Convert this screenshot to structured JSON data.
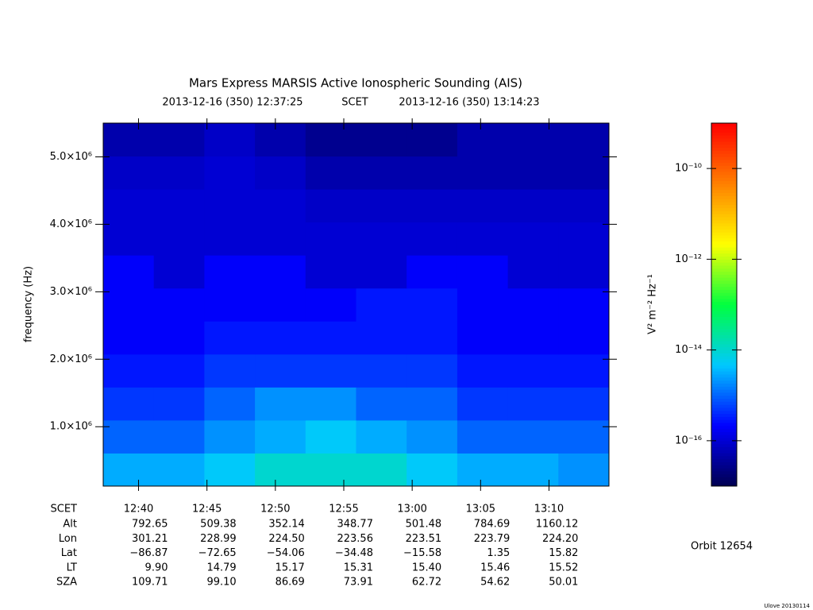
{
  "chart_data": {
    "type": "spectrogram",
    "title": "Mars Express MARSIS Active Ionospheric Sounding (AIS)",
    "start_time": "2013-12-16 (350) 12:37:25",
    "x_label": "SCET",
    "end_time": "2013-12-16 (350) 13:14:23",
    "y_label": "frequency (Hz)",
    "ylim": [
      120000,
      5500000
    ],
    "yticks": [
      {
        "value": 1000000,
        "label": "1.0×10⁶"
      },
      {
        "value": 2000000,
        "label": "2.0×10⁶"
      },
      {
        "value": 3000000,
        "label": "3.0×10⁶"
      },
      {
        "value": 4000000,
        "label": "4.0×10⁶"
      },
      {
        "value": 5000000,
        "label": "5.0×10⁶"
      }
    ],
    "xticks": [
      "12:40",
      "12:45",
      "12:50",
      "12:55",
      "13:00",
      "13:05",
      "13:10"
    ],
    "z": [
      [
        3e-15,
        3e-15,
        5e-15,
        1e-14,
        1e-14,
        1e-14,
        5e-15,
        3e-15,
        3e-15,
        2e-15
      ],
      [
        1e-15,
        1e-15,
        2e-15,
        3e-15,
        5e-15,
        3e-15,
        2e-15,
        1e-15,
        1e-15,
        1e-15
      ],
      [
        5e-16,
        5e-16,
        1e-15,
        2e-15,
        2e-15,
        1e-15,
        1e-15,
        5e-16,
        5e-16,
        5e-16
      ],
      [
        3e-16,
        3e-16,
        5e-16,
        5e-16,
        5e-16,
        5e-16,
        5e-16,
        3e-16,
        3e-16,
        3e-16
      ],
      [
        2e-16,
        2e-16,
        3e-16,
        3e-16,
        3e-16,
        3e-16,
        3e-16,
        2e-16,
        2e-16,
        2e-16
      ],
      [
        2e-16,
        2e-16,
        2e-16,
        2e-16,
        2e-16,
        3e-16,
        3e-16,
        2e-16,
        2e-16,
        2e-16
      ],
      [
        2e-16,
        1e-16,
        2e-16,
        2e-16,
        1e-16,
        1e-16,
        2e-16,
        2e-16,
        1e-16,
        1e-16
      ],
      [
        1e-16,
        1e-16,
        1e-16,
        1e-16,
        1e-16,
        1e-16,
        1e-16,
        1e-16,
        1e-16,
        1e-16
      ],
      [
        1e-16,
        1e-16,
        1e-16,
        1e-16,
        8e-17,
        8e-17,
        8e-17,
        8e-17,
        8e-17,
        8e-17
      ],
      [
        8e-17,
        8e-17,
        1e-16,
        8e-17,
        5e-17,
        5e-17,
        5e-17,
        5e-17,
        5e-17,
        5e-17
      ],
      [
        5e-17,
        5e-17,
        8e-17,
        5e-17,
        3e-17,
        3e-17,
        3e-17,
        5e-17,
        5e-17,
        5e-17
      ]
    ],
    "colormap": [
      "#000050",
      "#0000ff",
      "#00c8ff",
      "#00ff40",
      "#ffff00",
      "#ff8000",
      "#ff0000"
    ],
    "colorbar": {
      "label": "V² m⁻² Hz⁻¹",
      "log": true,
      "lim": [
        1e-17,
        1e-09
      ],
      "ticks": [
        {
          "value": 1e-10,
          "label": "10⁻¹⁰"
        },
        {
          "value": 1e-12,
          "label": "10⁻¹²"
        },
        {
          "value": 1e-14,
          "label": "10⁻¹⁴"
        },
        {
          "value": 1e-16,
          "label": "10⁻¹⁶"
        }
      ]
    }
  },
  "ephemeris": [
    {
      "name": "Alt",
      "values": [
        "792.65",
        "509.38",
        "352.14",
        "348.77",
        "501.48",
        "784.69",
        "1160.12"
      ]
    },
    {
      "name": "Lon",
      "values": [
        "301.21",
        "228.99",
        "224.50",
        "223.56",
        "223.51",
        "223.79",
        "224.20"
      ]
    },
    {
      "name": "Lat",
      "values": [
        "−86.87",
        "−72.65",
        "−54.06",
        "−34.48",
        "−15.58",
        "1.35",
        "15.82"
      ]
    },
    {
      "name": "LT",
      "values": [
        "9.90",
        "14.79",
        "15.17",
        "15.31",
        "15.40",
        "15.46",
        "15.52"
      ]
    },
    {
      "name": "SZA",
      "values": [
        "109.71",
        "99.10",
        "86.69",
        "73.91",
        "62.72",
        "54.62",
        "50.01"
      ]
    }
  ],
  "orbit": "Orbit 12654",
  "footer": "Ulove 20130114"
}
